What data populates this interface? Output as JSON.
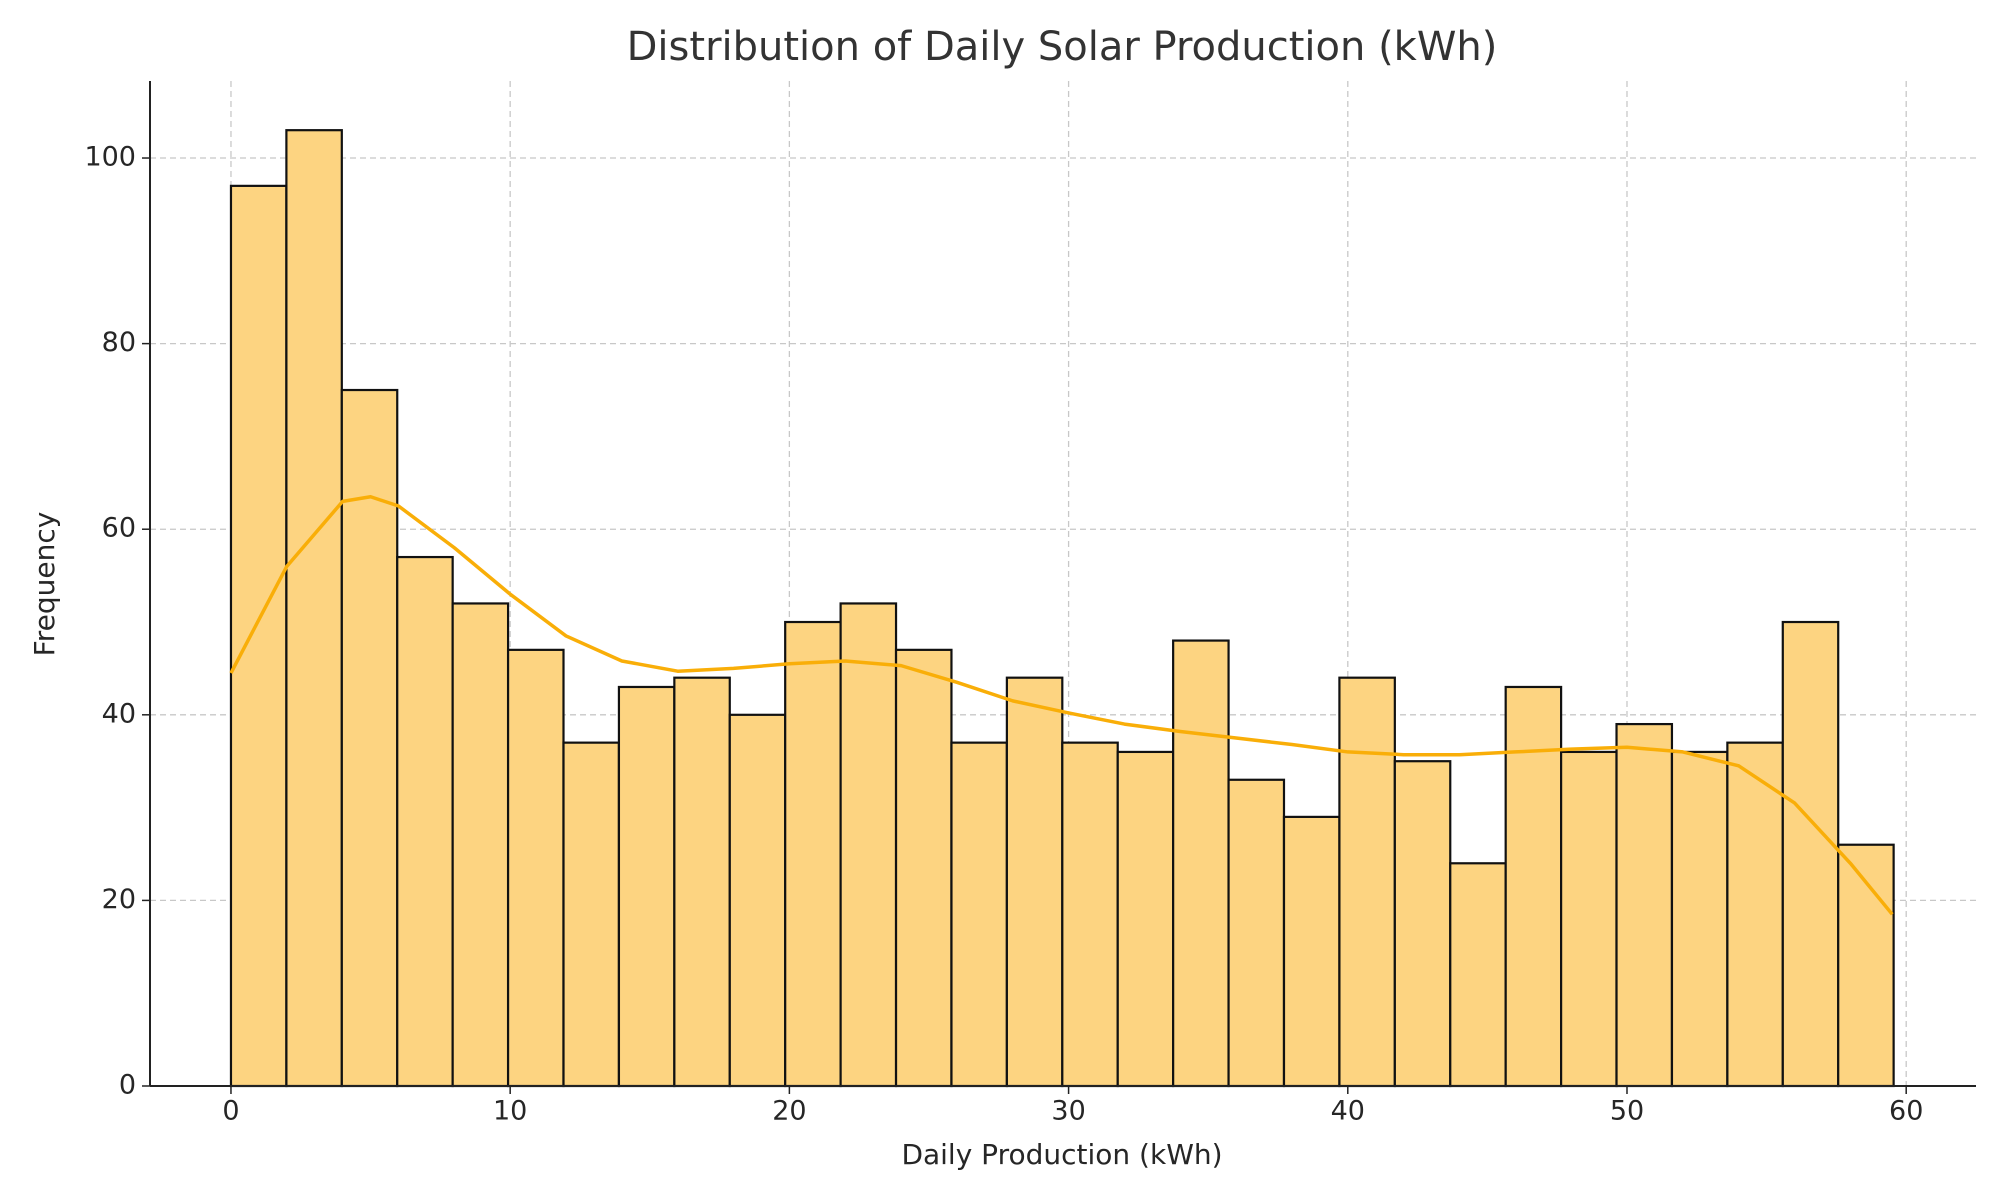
{
  "chart_data": {
    "type": "histogram",
    "title": "Distribution of Daily Solar Production (kWh)",
    "x_label": "Daily Production (kWh)",
    "y_label": "Frequency",
    "bins": [
      0,
      1.985,
      3.97,
      5.955,
      7.94,
      9.925,
      11.91,
      13.895,
      15.88,
      17.865,
      19.85,
      21.835,
      23.82,
      25.805,
      27.79,
      29.775,
      31.76,
      33.745,
      35.73,
      37.715,
      39.7,
      41.685,
      43.67,
      45.655,
      47.64,
      49.625,
      51.61,
      53.595,
      55.58,
      57.565,
      59.55
    ],
    "counts": [
      97,
      103,
      75,
      57,
      52,
      47,
      37,
      43,
      44,
      40,
      50,
      52,
      47,
      37,
      44,
      37,
      36,
      48,
      33,
      29,
      44,
      35,
      24,
      43,
      36,
      39,
      36,
      37,
      50,
      26
    ],
    "color": "#fdd481",
    "edgecolor": "#111111",
    "kde": {
      "color": "#f9ae08",
      "x": [
        0,
        2,
        4,
        5,
        6,
        8,
        10,
        12,
        14,
        16,
        18,
        20,
        22,
        24,
        26,
        28,
        30,
        32,
        34,
        36,
        38,
        40,
        42,
        44,
        46,
        48,
        50,
        52,
        54,
        56,
        58,
        59.5
      ],
      "y": [
        44.5,
        56,
        63,
        63.5,
        62.5,
        58,
        53,
        48.5,
        45.8,
        44.7,
        45,
        45.5,
        45.8,
        45.3,
        43.5,
        41.5,
        40.2,
        39,
        38.2,
        37.5,
        36.8,
        36,
        35.7,
        35.7,
        36,
        36.3,
        36.5,
        36,
        34.5,
        30.5,
        24,
        18.5
      ]
    },
    "xlim": [
      -2.9,
      62.5
    ],
    "ylim": [
      0,
      108.3
    ],
    "xticks": [
      0,
      10,
      20,
      30,
      40,
      50,
      60
    ],
    "yticks": [
      0,
      20,
      40,
      60,
      80,
      100
    ],
    "grid": true
  }
}
